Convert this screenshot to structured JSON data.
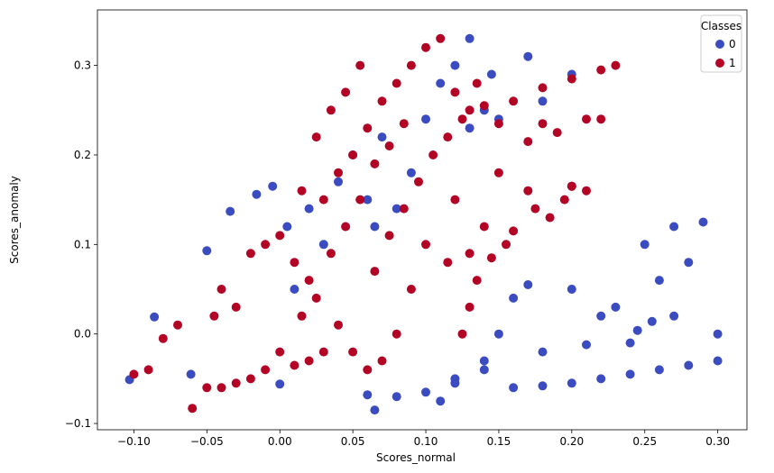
{
  "chart_data": {
    "type": "scatter",
    "xlabel": "Scores_normal",
    "ylabel": "Scores_anomaly",
    "xlim": [
      -0.125,
      0.32
    ],
    "ylim": [
      -0.107,
      0.362
    ],
    "xticks": [
      "−0.10",
      "−0.05",
      "0.00",
      "0.05",
      "0.10",
      "0.15",
      "0.20",
      "0.25",
      "0.30"
    ],
    "xtick_values": [
      -0.1,
      -0.05,
      0.0,
      0.05,
      0.1,
      0.15,
      0.2,
      0.25,
      0.3
    ],
    "yticks": [
      "−0.1",
      "0.0",
      "0.1",
      "0.2",
      "0.3"
    ],
    "ytick_values": [
      -0.1,
      0.0,
      0.1,
      0.2,
      0.3
    ],
    "grid": false,
    "legend": {
      "title": "Classes",
      "placement": "top-right",
      "entries": [
        {
          "label": "0",
          "color": "#3b4cc0"
        },
        {
          "label": "1",
          "color": "#b40426"
        }
      ]
    },
    "series": [
      {
        "name": "0",
        "color": "#3b4cc0",
        "points": [
          [
            -0.103,
            -0.051
          ],
          [
            -0.086,
            0.019
          ],
          [
            -0.061,
            -0.045
          ],
          [
            -0.05,
            0.093
          ],
          [
            -0.034,
            0.137
          ],
          [
            -0.016,
            0.156
          ],
          [
            -0.005,
            0.165
          ],
          [
            0.0,
            -0.056
          ],
          [
            0.005,
            0.12
          ],
          [
            0.01,
            0.05
          ],
          [
            0.02,
            0.14
          ],
          [
            0.03,
            0.1
          ],
          [
            0.04,
            0.17
          ],
          [
            0.05,
            0.2
          ],
          [
            0.06,
            0.15
          ],
          [
            0.065,
            0.12
          ],
          [
            0.07,
            0.22
          ],
          [
            0.08,
            0.14
          ],
          [
            0.09,
            0.18
          ],
          [
            0.1,
            0.24
          ],
          [
            0.11,
            0.28
          ],
          [
            0.12,
            0.3
          ],
          [
            0.13,
            0.33
          ],
          [
            0.14,
            0.25
          ],
          [
            0.15,
            0.24
          ],
          [
            0.145,
            0.29
          ],
          [
            0.18,
            0.26
          ],
          [
            0.2,
            0.29
          ],
          [
            0.17,
            0.31
          ],
          [
            0.13,
            0.23
          ],
          [
            0.06,
            -0.068
          ],
          [
            0.065,
            -0.085
          ],
          [
            0.08,
            -0.07
          ],
          [
            0.1,
            -0.065
          ],
          [
            0.12,
            -0.055
          ],
          [
            0.14,
            -0.04
          ],
          [
            0.16,
            -0.06
          ],
          [
            0.18,
            -0.058
          ],
          [
            0.2,
            -0.055
          ],
          [
            0.22,
            -0.05
          ],
          [
            0.24,
            -0.045
          ],
          [
            0.26,
            -0.04
          ],
          [
            0.28,
            -0.035
          ],
          [
            0.3,
            -0.03
          ],
          [
            0.25,
            0.1
          ],
          [
            0.27,
            0.12
          ],
          [
            0.29,
            0.125
          ],
          [
            0.28,
            0.08
          ],
          [
            0.26,
            0.06
          ],
          [
            0.27,
            0.02
          ],
          [
            0.3,
            0.0
          ],
          [
            0.2,
            0.05
          ],
          [
            0.22,
            0.02
          ],
          [
            0.23,
            0.03
          ],
          [
            0.24,
            -0.01
          ],
          [
            0.16,
            0.04
          ],
          [
            0.17,
            0.055
          ],
          [
            0.15,
            0.0
          ],
          [
            0.18,
            -0.02
          ],
          [
            0.21,
            -0.012
          ],
          [
            0.245,
            0.004
          ],
          [
            0.255,
            0.014
          ],
          [
            0.14,
            -0.03
          ],
          [
            0.12,
            -0.05
          ],
          [
            0.11,
            -0.075
          ]
        ]
      },
      {
        "name": "1",
        "color": "#b40426",
        "points": [
          [
            -0.1,
            -0.045
          ],
          [
            -0.09,
            -0.04
          ],
          [
            -0.08,
            -0.005
          ],
          [
            -0.07,
            0.01
          ],
          [
            -0.06,
            -0.083
          ],
          [
            -0.05,
            -0.06
          ],
          [
            -0.045,
            0.02
          ],
          [
            -0.04,
            0.05
          ],
          [
            -0.03,
            0.03
          ],
          [
            -0.02,
            0.09
          ],
          [
            -0.01,
            0.1
          ],
          [
            0.0,
            0.11
          ],
          [
            0.01,
            0.08
          ],
          [
            0.015,
            0.16
          ],
          [
            0.02,
            0.06
          ],
          [
            0.025,
            0.22
          ],
          [
            0.03,
            0.15
          ],
          [
            0.035,
            0.25
          ],
          [
            0.04,
            0.18
          ],
          [
            0.045,
            0.27
          ],
          [
            0.05,
            0.2
          ],
          [
            0.055,
            0.3
          ],
          [
            0.06,
            0.23
          ],
          [
            0.07,
            0.26
          ],
          [
            0.08,
            0.28
          ],
          [
            0.09,
            0.3
          ],
          [
            0.1,
            0.32
          ],
          [
            0.11,
            0.33
          ],
          [
            0.12,
            0.27
          ],
          [
            0.13,
            0.25
          ],
          [
            0.14,
            0.255
          ],
          [
            0.16,
            0.26
          ],
          [
            0.18,
            0.275
          ],
          [
            0.2,
            0.285
          ],
          [
            0.22,
            0.295
          ],
          [
            0.23,
            0.3
          ],
          [
            0.15,
            0.235
          ],
          [
            0.18,
            0.235
          ],
          [
            0.21,
            0.24
          ],
          [
            0.22,
            0.24
          ],
          [
            0.17,
            0.215
          ],
          [
            0.19,
            0.225
          ],
          [
            0.15,
            0.18
          ],
          [
            0.17,
            0.16
          ],
          [
            0.2,
            0.165
          ],
          [
            0.21,
            0.16
          ],
          [
            0.12,
            0.15
          ],
          [
            0.14,
            0.12
          ],
          [
            0.13,
            0.09
          ],
          [
            0.135,
            0.06
          ],
          [
            0.13,
            0.03
          ],
          [
            0.125,
            0.0
          ],
          [
            0.115,
            0.08
          ],
          [
            0.1,
            0.1
          ],
          [
            0.09,
            0.05
          ],
          [
            0.08,
            0.0
          ],
          [
            0.07,
            -0.03
          ],
          [
            0.06,
            -0.04
          ],
          [
            0.05,
            -0.02
          ],
          [
            0.04,
            0.01
          ],
          [
            0.03,
            -0.02
          ],
          [
            0.02,
            -0.03
          ],
          [
            0.01,
            -0.035
          ],
          [
            0.0,
            -0.02
          ],
          [
            -0.01,
            -0.04
          ],
          [
            -0.02,
            -0.05
          ],
          [
            -0.03,
            -0.055
          ],
          [
            -0.04,
            -0.06
          ],
          [
            0.065,
            0.07
          ],
          [
            0.075,
            0.11
          ],
          [
            0.085,
            0.14
          ],
          [
            0.095,
            0.17
          ],
          [
            0.105,
            0.2
          ],
          [
            0.115,
            0.22
          ],
          [
            0.125,
            0.24
          ],
          [
            0.135,
            0.28
          ],
          [
            0.045,
            0.12
          ],
          [
            0.035,
            0.09
          ],
          [
            0.025,
            0.04
          ],
          [
            0.015,
            0.02
          ],
          [
            0.055,
            0.15
          ],
          [
            0.065,
            0.19
          ],
          [
            0.075,
            0.21
          ],
          [
            0.085,
            0.235
          ],
          [
            0.16,
            0.115
          ],
          [
            0.155,
            0.1
          ],
          [
            0.145,
            0.085
          ],
          [
            0.185,
            0.13
          ],
          [
            0.175,
            0.14
          ],
          [
            0.195,
            0.15
          ],
          [
            0.2,
            0.165
          ]
        ]
      }
    ]
  }
}
